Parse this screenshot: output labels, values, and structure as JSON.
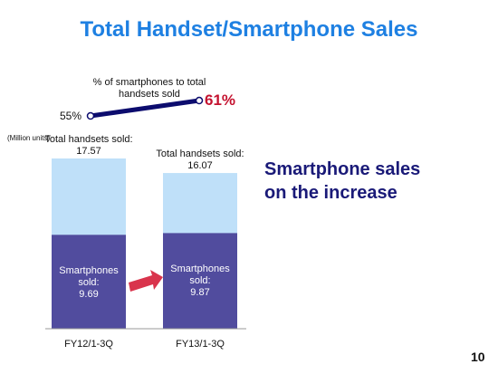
{
  "title": "Total Handset/Smartphone Sales",
  "headline": [
    "Smartphone sales",
    "on the increase"
  ],
  "page_number": "10",
  "chart_data": [
    {
      "type": "bar",
      "unit_label": "(Million units)",
      "categories": [
        "FY12/1-3Q",
        "FY13/1-3Q"
      ],
      "series": [
        {
          "name": "Total handsets sold:",
          "color": "#bfe0f9",
          "values": [
            17.57,
            16.07
          ]
        },
        {
          "name": "Smartphones sold:",
          "color": "#514c9e",
          "values": [
            9.69,
            9.87
          ]
        }
      ]
    },
    {
      "type": "line",
      "title": "% of smartphones to total handsets sold",
      "values": [
        55,
        61
      ],
      "value_labels": [
        "55%",
        "61%"
      ],
      "color": "#0c0c6e"
    }
  ]
}
